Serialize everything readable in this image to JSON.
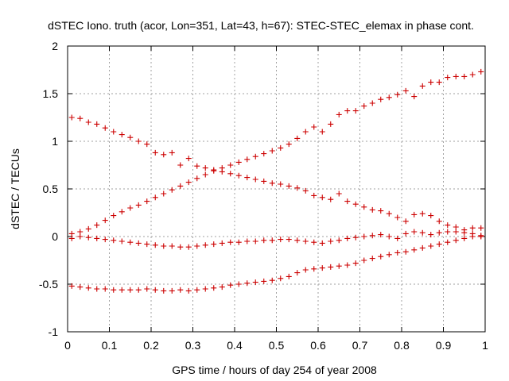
{
  "chart_data": {
    "type": "scatter",
    "title": "dSTEC Iono. truth (acor, Lon=351, Lat=43, h=67): STEC-STEC_elemax in phase cont.",
    "xlabel": "GPS time / hours of day 254 of year 2008",
    "ylabel": "dSTEC  / TECUs",
    "xlim": [
      0,
      1
    ],
    "ylim": [
      -1,
      2
    ],
    "xticks": [
      "0",
      "0.1",
      "0.2",
      "0.3",
      "0.4",
      "0.5",
      "0.6",
      "0.7",
      "0.8",
      "0.9",
      "1"
    ],
    "yticks": [
      "-1",
      "-0.5",
      "0",
      "0.5",
      "1",
      "1.5",
      "2"
    ],
    "grid": true,
    "marker": "+",
    "color": "#cc0000",
    "series": [
      {
        "x": [
          0.01,
          0.03,
          0.05,
          0.07,
          0.09,
          0.11,
          0.13,
          0.15,
          0.17,
          0.19,
          0.21,
          0.23,
          0.25,
          0.27,
          0.29,
          0.31,
          0.33,
          0.35,
          0.37,
          0.39,
          0.41,
          0.43,
          0.45,
          0.47,
          0.49,
          0.51,
          0.53,
          0.55,
          0.57,
          0.59,
          0.61,
          0.63,
          0.65,
          0.67,
          0.69,
          0.71,
          0.73,
          0.75,
          0.77,
          0.79,
          0.81,
          0.83,
          0.85,
          0.87,
          0.89,
          0.91,
          0.93,
          0.95,
          0.97,
          0.99
        ],
        "y": [
          0.03,
          0.05,
          0.08,
          0.12,
          0.17,
          0.22,
          0.26,
          0.3,
          0.33,
          0.37,
          0.41,
          0.45,
          0.49,
          0.53,
          0.57,
          0.61,
          0.65,
          0.69,
          0.72,
          0.75,
          0.78,
          0.81,
          0.84,
          0.87,
          0.9,
          0.93,
          0.97,
          1.03,
          1.1,
          1.15,
          1.1,
          1.18,
          1.28,
          1.32,
          1.32,
          1.37,
          1.4,
          1.44,
          1.46,
          1.49,
          1.53,
          1.47,
          1.58,
          1.62,
          1.62,
          1.67,
          1.68,
          1.68,
          1.7,
          1.73
        ]
      },
      {
        "x": [
          0.01,
          0.03,
          0.05,
          0.07,
          0.09,
          0.11,
          0.13,
          0.15,
          0.17,
          0.19,
          0.21,
          0.23,
          0.25,
          0.27,
          0.29,
          0.31,
          0.33,
          0.35,
          0.37,
          0.39,
          0.41,
          0.43,
          0.45,
          0.47,
          0.49,
          0.51,
          0.53,
          0.55,
          0.57,
          0.59,
          0.61,
          0.63,
          0.65,
          0.67,
          0.69,
          0.71,
          0.73,
          0.75,
          0.77,
          0.79,
          0.81,
          0.83,
          0.85,
          0.87,
          0.89,
          0.91,
          0.93,
          0.95,
          0.97,
          0.99
        ],
        "y": [
          1.25,
          1.24,
          1.2,
          1.18,
          1.14,
          1.1,
          1.07,
          1.04,
          1.0,
          0.97,
          0.88,
          0.86,
          0.88,
          0.75,
          0.82,
          0.74,
          0.72,
          0.7,
          0.68,
          0.66,
          0.64,
          0.62,
          0.6,
          0.58,
          0.56,
          0.55,
          0.53,
          0.51,
          0.48,
          0.43,
          0.41,
          0.39,
          0.45,
          0.37,
          0.34,
          0.31,
          0.28,
          0.27,
          0.24,
          0.2,
          0.16,
          0.23,
          0.24,
          0.22,
          0.16,
          0.12,
          0.1,
          0.07,
          0.09,
          0.09
        ]
      },
      {
        "x": [
          0.01,
          0.03,
          0.05,
          0.07,
          0.09,
          0.11,
          0.13,
          0.15,
          0.17,
          0.19,
          0.21,
          0.23,
          0.25,
          0.27,
          0.29,
          0.31,
          0.33,
          0.35,
          0.37,
          0.39,
          0.41,
          0.43,
          0.45,
          0.47,
          0.49,
          0.51,
          0.53,
          0.55,
          0.57,
          0.59,
          0.61,
          0.63,
          0.65,
          0.67,
          0.69,
          0.71,
          0.73,
          0.75,
          0.77,
          0.79,
          0.81,
          0.83,
          0.85,
          0.87,
          0.89,
          0.91,
          0.93,
          0.95,
          0.97,
          0.99
        ],
        "y": [
          -0.02,
          0.0,
          -0.01,
          -0.02,
          -0.03,
          -0.04,
          -0.05,
          -0.06,
          -0.07,
          -0.08,
          -0.09,
          -0.1,
          -0.1,
          -0.11,
          -0.11,
          -0.1,
          -0.09,
          -0.08,
          -0.07,
          -0.06,
          -0.06,
          -0.05,
          -0.05,
          -0.04,
          -0.04,
          -0.03,
          -0.03,
          -0.04,
          -0.05,
          -0.06,
          -0.07,
          -0.05,
          -0.04,
          -0.02,
          -0.01,
          0.0,
          0.01,
          0.02,
          0.0,
          -0.02,
          0.03,
          0.05,
          0.04,
          0.02,
          0.04,
          0.05,
          0.05,
          0.04,
          0.03,
          0.01
        ]
      },
      {
        "x": [
          0.01,
          0.03,
          0.05,
          0.07,
          0.09,
          0.11,
          0.13,
          0.15,
          0.17,
          0.19,
          0.21,
          0.23,
          0.25,
          0.27,
          0.29,
          0.31,
          0.33,
          0.35,
          0.37,
          0.39,
          0.41,
          0.43,
          0.45,
          0.47,
          0.49,
          0.51,
          0.53,
          0.55,
          0.57,
          0.59,
          0.61,
          0.63,
          0.65,
          0.67,
          0.69,
          0.71,
          0.73,
          0.75,
          0.77,
          0.79,
          0.81,
          0.83,
          0.85,
          0.87,
          0.89,
          0.91,
          0.93,
          0.95,
          0.97,
          0.99
        ],
        "y": [
          -0.52,
          -0.53,
          -0.54,
          -0.55,
          -0.55,
          -0.56,
          -0.56,
          -0.56,
          -0.56,
          -0.55,
          -0.56,
          -0.57,
          -0.57,
          -0.56,
          -0.57,
          -0.56,
          -0.55,
          -0.54,
          -0.53,
          -0.51,
          -0.5,
          -0.49,
          -0.48,
          -0.47,
          -0.46,
          -0.44,
          -0.42,
          -0.38,
          -0.35,
          -0.34,
          -0.33,
          -0.32,
          -0.31,
          -0.3,
          -0.28,
          -0.25,
          -0.23,
          -0.21,
          -0.19,
          -0.17,
          -0.16,
          -0.14,
          -0.12,
          -0.1,
          -0.08,
          -0.06,
          -0.04,
          -0.02,
          0.0,
          0.0
        ]
      }
    ]
  }
}
